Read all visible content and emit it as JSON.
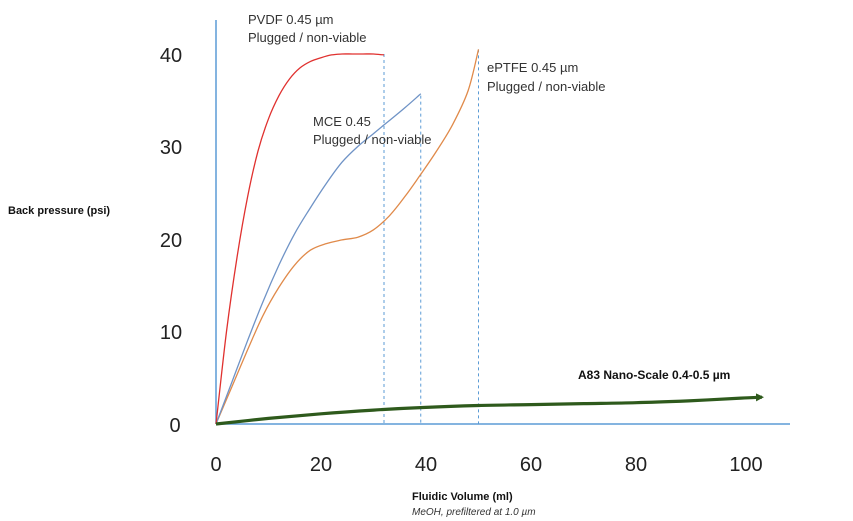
{
  "chart_data": {
    "type": "line",
    "title": "",
    "ylabel": "Back pressure (psi)",
    "xlabel": "Fluidic Volume (ml)",
    "xlabel_note": "MeOH, prefiltered at 1.0 µm",
    "xlim": [
      0,
      105
    ],
    "ylim": [
      0,
      44
    ],
    "x_ticks": [
      "0",
      "20",
      "40",
      "60",
      "80",
      "100"
    ],
    "y_ticks": [
      "0",
      "10",
      "20",
      "30",
      "40"
    ],
    "grid": false,
    "colors": {
      "axis": "#5b9bd5",
      "pvdf": "#e0312f",
      "mce": "#6f93c6",
      "eptfe": "#e08a4a",
      "nano": "#2e5a1c",
      "dropline": "#5b9bd5"
    },
    "series": [
      {
        "key": "pvdf",
        "x": [
          0,
          2,
          4,
          6,
          8,
          10,
          12,
          14,
          16,
          18,
          20,
          22,
          24,
          26,
          28,
          30,
          32
        ],
        "values": [
          0,
          10,
          18,
          24.5,
          29.5,
          33,
          35.5,
          37.3,
          38.5,
          39.2,
          39.6,
          39.9,
          40,
          40,
          40,
          40,
          39.9
        ]
      },
      {
        "key": "mce",
        "x": [
          0,
          3,
          6,
          9,
          12,
          15,
          18,
          21,
          24,
          27,
          30,
          33,
          36,
          39
        ],
        "values": [
          0,
          4.5,
          9,
          13.3,
          17.2,
          20.6,
          23.4,
          26,
          28.3,
          30,
          31.4,
          32.8,
          34.2,
          35.7
        ]
      },
      {
        "key": "eptfe",
        "x": [
          0,
          3,
          6,
          9,
          12,
          15,
          18,
          21,
          24,
          27,
          30,
          33,
          36,
          39,
          42,
          45,
          48,
          50
        ],
        "values": [
          0,
          4,
          8,
          11.8,
          14.8,
          17.2,
          18.8,
          19.5,
          19.9,
          20.2,
          21,
          22.5,
          24.6,
          27,
          29.5,
          32.3,
          36,
          40.5
        ]
      },
      {
        "key": "nano",
        "x": [
          0,
          10,
          20,
          30,
          40,
          50,
          60,
          70,
          80,
          90,
          100,
          104
        ],
        "values": [
          0,
          0.6,
          1.1,
          1.5,
          1.8,
          2.0,
          2.1,
          2.2,
          2.3,
          2.5,
          2.8,
          2.9
        ]
      }
    ],
    "plug_lines": [
      {
        "x": 32,
        "y": 40
      },
      {
        "x": 39,
        "y": 35.5
      },
      {
        "x": 50,
        "y": 40.5
      }
    ],
    "annotations": {
      "pvdf_1": "PVDF 0.45 µm",
      "pvdf_2": "Plugged / non-viable",
      "mce_1": "MCE 0.45",
      "mce_2": "Plugged / non-viable",
      "eptfe_1": "ePTFE 0.45 µm",
      "eptfe_2": "Plugged / non-viable",
      "nano": "A83 Nano-Scale 0.4-0.5 µm"
    }
  }
}
